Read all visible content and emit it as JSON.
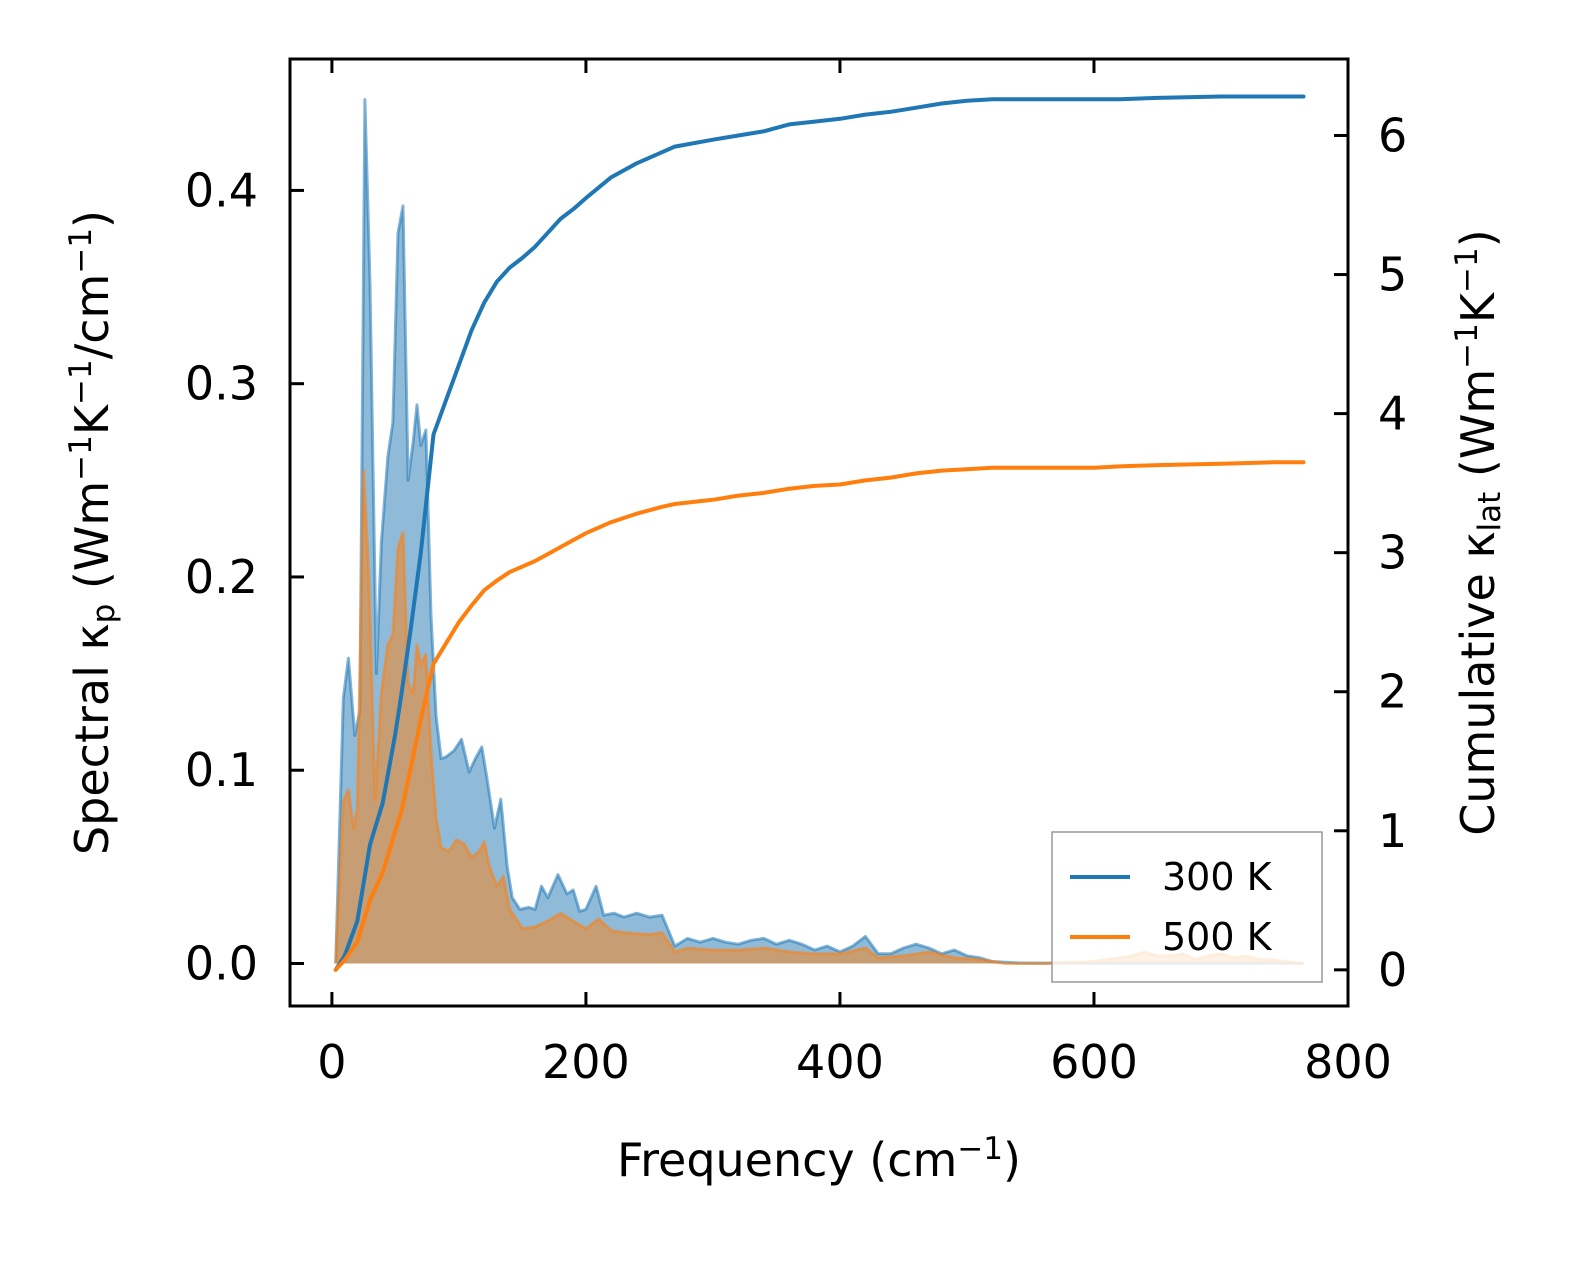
{
  "chart_data": {
    "type": "area",
    "title": "",
    "xlabel": {
      "main": "Frequency (cm",
      "sup": "−1",
      "end": ")"
    },
    "ylabel_left": {
      "parts": [
        {
          "t": "Spectral κ"
        },
        {
          "t": "p",
          "sub": true
        },
        {
          "t": " (Wm"
        },
        {
          "t": "−1",
          "sup": true
        },
        {
          "t": "K"
        },
        {
          "t": "−1",
          "sup": true
        },
        {
          "t": "/cm"
        },
        {
          "t": "−1",
          "sup": true
        },
        {
          "t": ")"
        }
      ]
    },
    "ylabel_right": {
      "parts": [
        {
          "t": "Cumulative κ"
        },
        {
          "t": "lat",
          "sub": true
        },
        {
          "t": " (Wm"
        },
        {
          "t": "−1",
          "sup": true
        },
        {
          "t": "K"
        },
        {
          "t": "−1",
          "sup": true
        },
        {
          "t": ")"
        }
      ]
    },
    "xlim": [
      -33,
      800
    ],
    "ylim_left": [
      -0.022,
      0.468
    ],
    "ylim_right": [
      -0.26,
      6.55
    ],
    "xticks": [
      0,
      200,
      400,
      600,
      800
    ],
    "xtick_labels": [
      "0",
      "200",
      "400",
      "600",
      "800"
    ],
    "yticks_left": [
      0.0,
      0.1,
      0.2,
      0.3,
      0.4
    ],
    "ytick_labels_left": [
      "0.0",
      "0.1",
      "0.2",
      "0.3",
      "0.4"
    ],
    "yticks_right": [
      0,
      1,
      2,
      3,
      4,
      5,
      6
    ],
    "ytick_labels_right": [
      "0",
      "1",
      "2",
      "3",
      "4",
      "5",
      "6"
    ],
    "grid": false,
    "legend": {
      "position": "lower-right",
      "entries": [
        "300 K",
        "500 K"
      ]
    },
    "colors": {
      "300 K": "#1f77b4",
      "500 K": "#ff7f0e",
      "fill_300": "#1f77b4",
      "fill_500": "#ff7f0e"
    },
    "spectral": {
      "axis": "left",
      "series": [
        {
          "name": "300 K",
          "points": [
            [
              3,
              0
            ],
            [
              9,
              0.137
            ],
            [
              13,
              0.158
            ],
            [
              18,
              0.118
            ],
            [
              22,
              0.131
            ],
            [
              26,
              0.447
            ],
            [
              30,
              0.352
            ],
            [
              35,
              0.15
            ],
            [
              39,
              0.218
            ],
            [
              44,
              0.262
            ],
            [
              48,
              0.28
            ],
            [
              52,
              0.378
            ],
            [
              56,
              0.392
            ],
            [
              60,
              0.25
            ],
            [
              64,
              0.27
            ],
            [
              67,
              0.289
            ],
            [
              70,
              0.268
            ],
            [
              74,
              0.276
            ],
            [
              78,
              0.18
            ],
            [
              82,
              0.128
            ],
            [
              86,
              0.106
            ],
            [
              90,
              0.107
            ],
            [
              96,
              0.11
            ],
            [
              102,
              0.116
            ],
            [
              108,
              0.099
            ],
            [
              113,
              0.106
            ],
            [
              118,
              0.112
            ],
            [
              122,
              0.096
            ],
            [
              128,
              0.07
            ],
            [
              133,
              0.085
            ],
            [
              138,
              0.05
            ],
            [
              142,
              0.034
            ],
            [
              148,
              0.028
            ],
            [
              155,
              0.029
            ],
            [
              160,
              0.028
            ],
            [
              165,
              0.04
            ],
            [
              170,
              0.034
            ],
            [
              178,
              0.046
            ],
            [
              185,
              0.036
            ],
            [
              190,
              0.038
            ],
            [
              195,
              0.027
            ],
            [
              200,
              0.028
            ],
            [
              208,
              0.04
            ],
            [
              214,
              0.025
            ],
            [
              222,
              0.026
            ],
            [
              230,
              0.024
            ],
            [
              240,
              0.026
            ],
            [
              250,
              0.024
            ],
            [
              260,
              0.025
            ],
            [
              270,
              0.009
            ],
            [
              280,
              0.013
            ],
            [
              290,
              0.011
            ],
            [
              300,
              0.013
            ],
            [
              310,
              0.011
            ],
            [
              320,
              0.01
            ],
            [
              330,
              0.012
            ],
            [
              340,
              0.013
            ],
            [
              350,
              0.01
            ],
            [
              360,
              0.012
            ],
            [
              370,
              0.01
            ],
            [
              380,
              0.007
            ],
            [
              390,
              0.009
            ],
            [
              400,
              0.006
            ],
            [
              410,
              0.009
            ],
            [
              420,
              0.014
            ],
            [
              430,
              0.005
            ],
            [
              440,
              0.005
            ],
            [
              450,
              0.008
            ],
            [
              460,
              0.01
            ],
            [
              470,
              0.008
            ],
            [
              480,
              0.005
            ],
            [
              490,
              0.007
            ],
            [
              500,
              0.004
            ],
            [
              510,
              0.003
            ],
            [
              520,
              0.001
            ],
            [
              540,
              0.0003
            ],
            [
              560,
              0.0002
            ],
            [
              600,
              0.0001
            ],
            [
              650,
              0.0001
            ],
            [
              700,
              0.0001
            ],
            [
              765,
              0.0001
            ]
          ]
        },
        {
          "name": "500 K",
          "points": [
            [
              3,
              0
            ],
            [
              9,
              0.084
            ],
            [
              13,
              0.09
            ],
            [
              17,
              0.07
            ],
            [
              20,
              0.08
            ],
            [
              25,
              0.255
            ],
            [
              29,
              0.2
            ],
            [
              34,
              0.085
            ],
            [
              39,
              0.14
            ],
            [
              44,
              0.165
            ],
            [
              48,
              0.17
            ],
            [
              52,
              0.215
            ],
            [
              56,
              0.223
            ],
            [
              60,
              0.145
            ],
            [
              64,
              0.14
            ],
            [
              67,
              0.165
            ],
            [
              70,
              0.155
            ],
            [
              74,
              0.16
            ],
            [
              78,
              0.11
            ],
            [
              82,
              0.075
            ],
            [
              86,
              0.06
            ],
            [
              92,
              0.058
            ],
            [
              98,
              0.064
            ],
            [
              104,
              0.062
            ],
            [
              110,
              0.055
            ],
            [
              116,
              0.058
            ],
            [
              120,
              0.063
            ],
            [
              124,
              0.05
            ],
            [
              130,
              0.04
            ],
            [
              135,
              0.045
            ],
            [
              140,
              0.028
            ],
            [
              145,
              0.023
            ],
            [
              150,
              0.018
            ],
            [
              160,
              0.019
            ],
            [
              170,
              0.022
            ],
            [
              180,
              0.026
            ],
            [
              190,
              0.022
            ],
            [
              200,
              0.018
            ],
            [
              210,
              0.023
            ],
            [
              220,
              0.017
            ],
            [
              230,
              0.016
            ],
            [
              250,
              0.015
            ],
            [
              260,
              0.016
            ],
            [
              270,
              0.006
            ],
            [
              280,
              0.008
            ],
            [
              300,
              0.007
            ],
            [
              320,
              0.007
            ],
            [
              340,
              0.008
            ],
            [
              360,
              0.006
            ],
            [
              380,
              0.005
            ],
            [
              400,
              0.005
            ],
            [
              420,
              0.008
            ],
            [
              430,
              0.003
            ],
            [
              450,
              0.004
            ],
            [
              470,
              0.006
            ],
            [
              490,
              0.003
            ],
            [
              510,
              0.002
            ],
            [
              530,
              0.0
            ],
            [
              560,
              0.0
            ],
            [
              600,
              0.001
            ],
            [
              620,
              0.003
            ],
            [
              630,
              0.004
            ],
            [
              640,
              0.006
            ],
            [
              650,
              0.004
            ],
            [
              660,
              0.004
            ],
            [
              670,
              0.005
            ],
            [
              680,
              0.002
            ],
            [
              690,
              0.004
            ],
            [
              700,
              0.005
            ],
            [
              710,
              0.003
            ],
            [
              720,
              0.004
            ],
            [
              730,
              0.002
            ],
            [
              740,
              0.002
            ],
            [
              750,
              0.001
            ],
            [
              765,
              0.0
            ]
          ]
        }
      ]
    },
    "cumulative": {
      "axis": "right",
      "series": [
        {
          "name": "300 K",
          "points": [
            [
              3,
              0
            ],
            [
              10,
              0.1
            ],
            [
              20,
              0.35
            ],
            [
              30,
              0.9
            ],
            [
              40,
              1.2
            ],
            [
              50,
              1.7
            ],
            [
              55,
              2.0
            ],
            [
              62,
              2.45
            ],
            [
              70,
              3.0
            ],
            [
              80,
              3.85
            ],
            [
              90,
              4.1
            ],
            [
              100,
              4.35
            ],
            [
              110,
              4.6
            ],
            [
              120,
              4.8
            ],
            [
              130,
              4.95
            ],
            [
              140,
              5.05
            ],
            [
              150,
              5.12
            ],
            [
              160,
              5.2
            ],
            [
              170,
              5.3
            ],
            [
              180,
              5.4
            ],
            [
              190,
              5.47
            ],
            [
              200,
              5.55
            ],
            [
              220,
              5.7
            ],
            [
              240,
              5.8
            ],
            [
              260,
              5.88
            ],
            [
              270,
              5.92
            ],
            [
              300,
              5.97
            ],
            [
              320,
              6.0
            ],
            [
              340,
              6.03
            ],
            [
              360,
              6.08
            ],
            [
              380,
              6.1
            ],
            [
              400,
              6.12
            ],
            [
              420,
              6.15
            ],
            [
              440,
              6.17
            ],
            [
              460,
              6.2
            ],
            [
              480,
              6.23
            ],
            [
              500,
              6.25
            ],
            [
              520,
              6.26
            ],
            [
              560,
              6.26
            ],
            [
              600,
              6.26
            ],
            [
              620,
              6.26
            ],
            [
              650,
              6.27
            ],
            [
              700,
              6.28
            ],
            [
              740,
              6.28
            ],
            [
              765,
              6.28
            ]
          ]
        },
        {
          "name": "500 K",
          "points": [
            [
              3,
              0
            ],
            [
              10,
              0.07
            ],
            [
              20,
              0.2
            ],
            [
              30,
              0.5
            ],
            [
              40,
              0.7
            ],
            [
              50,
              1.0
            ],
            [
              55,
              1.15
            ],
            [
              62,
              1.45
            ],
            [
              70,
              1.8
            ],
            [
              80,
              2.2
            ],
            [
              90,
              2.35
            ],
            [
              100,
              2.5
            ],
            [
              110,
              2.62
            ],
            [
              120,
              2.73
            ],
            [
              130,
              2.8
            ],
            [
              140,
              2.86
            ],
            [
              150,
              2.9
            ],
            [
              160,
              2.94
            ],
            [
              170,
              2.99
            ],
            [
              180,
              3.04
            ],
            [
              190,
              3.09
            ],
            [
              200,
              3.14
            ],
            [
              220,
              3.22
            ],
            [
              240,
              3.28
            ],
            [
              260,
              3.33
            ],
            [
              270,
              3.35
            ],
            [
              300,
              3.38
            ],
            [
              320,
              3.41
            ],
            [
              340,
              3.43
            ],
            [
              360,
              3.46
            ],
            [
              380,
              3.48
            ],
            [
              400,
              3.49
            ],
            [
              420,
              3.52
            ],
            [
              440,
              3.54
            ],
            [
              460,
              3.57
            ],
            [
              480,
              3.59
            ],
            [
              500,
              3.6
            ],
            [
              520,
              3.61
            ],
            [
              560,
              3.61
            ],
            [
              600,
              3.61
            ],
            [
              620,
              3.62
            ],
            [
              650,
              3.63
            ],
            [
              700,
              3.64
            ],
            [
              740,
              3.65
            ],
            [
              765,
              3.65
            ]
          ]
        }
      ]
    }
  }
}
